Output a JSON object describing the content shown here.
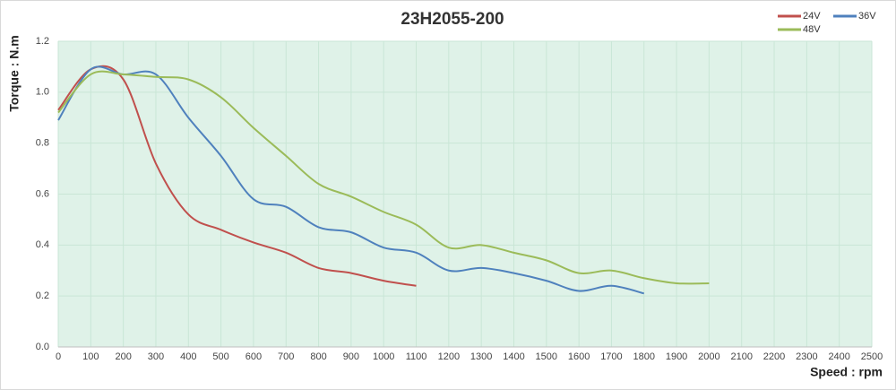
{
  "chart_data": {
    "type": "line",
    "title": "23H2055-200",
    "x_label": "Speed : rpm",
    "y_label": "Torque : N.m",
    "series": [
      {
        "name": "24V",
        "color": "#c0504d",
        "x": [
          0,
          100,
          200,
          300,
          400,
          500,
          600,
          700,
          800,
          900,
          1000,
          1100
        ],
        "values": [
          0.93,
          1.09,
          1.05,
          0.72,
          0.52,
          0.46,
          0.41,
          0.37,
          0.31,
          0.29,
          0.26,
          0.24
        ]
      },
      {
        "name": "36V",
        "color": "#4f81bd",
        "x": [
          0,
          100,
          200,
          300,
          400,
          500,
          600,
          700,
          800,
          900,
          1000,
          1100,
          1200,
          1300,
          1400,
          1500,
          1600,
          1700,
          1800
        ],
        "values": [
          0.89,
          1.09,
          1.07,
          1.07,
          0.9,
          0.75,
          0.58,
          0.55,
          0.47,
          0.45,
          0.39,
          0.37,
          0.3,
          0.31,
          0.29,
          0.26,
          0.22,
          0.24,
          0.21
        ]
      },
      {
        "name": "48V",
        "color": "#9bbb59",
        "x": [
          0,
          100,
          200,
          300,
          400,
          500,
          600,
          700,
          800,
          900,
          1000,
          1100,
          1200,
          1300,
          1400,
          1500,
          1600,
          1700,
          1800,
          1900,
          2000
        ],
        "values": [
          0.92,
          1.07,
          1.07,
          1.06,
          1.05,
          0.98,
          0.86,
          0.75,
          0.64,
          0.59,
          0.53,
          0.48,
          0.39,
          0.4,
          0.37,
          0.34,
          0.29,
          0.3,
          0.27,
          0.25,
          0.25
        ]
      }
    ],
    "xlim": [
      0,
      2500
    ],
    "xticks": [
      0,
      100,
      200,
      300,
      400,
      500,
      600,
      700,
      800,
      900,
      1000,
      1100,
      1200,
      1300,
      1400,
      1500,
      1600,
      1700,
      1800,
      1900,
      2000,
      2100,
      2200,
      2300,
      2400,
      2500
    ],
    "ylim": [
      0,
      1.2
    ],
    "yticks": [
      {
        "value": 0,
        "label": "0.0"
      },
      0.2,
      0.4,
      0.6,
      0.8,
      {
        "value": 1,
        "label": "1.0"
      },
      1.2
    ],
    "grid": true,
    "legend": "top-right"
  }
}
